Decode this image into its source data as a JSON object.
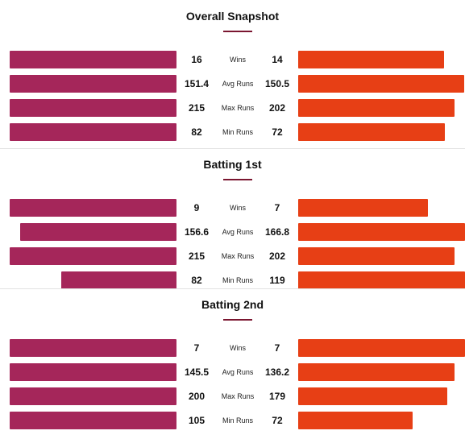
{
  "colors": {
    "team_left": "#a5265a",
    "team_right": "#e73f15",
    "accent": "#7a1630"
  },
  "chart_data": [
    {
      "type": "bar",
      "title": "Overall Snapshot",
      "categories": [
        "Wins",
        "Avg Runs",
        "Max Runs",
        "Min Runs"
      ],
      "left": [
        "16",
        "151.4",
        "215",
        "82"
      ],
      "right": [
        "14",
        "150.5",
        "202",
        "72"
      ]
    },
    {
      "type": "bar",
      "title": "Batting 1st",
      "categories": [
        "Wins",
        "Avg Runs",
        "Max Runs",
        "Min Runs"
      ],
      "left": [
        "9",
        "156.6",
        "215",
        "82"
      ],
      "right": [
        "7",
        "166.8",
        "202",
        "119"
      ]
    },
    {
      "type": "bar",
      "title": "Batting 2nd",
      "categories": [
        "Wins",
        "Avg Runs",
        "Max Runs",
        "Min Runs"
      ],
      "left": [
        "7",
        "145.5",
        "200",
        "105"
      ],
      "right": [
        "7",
        "136.2",
        "179",
        "72"
      ]
    }
  ]
}
